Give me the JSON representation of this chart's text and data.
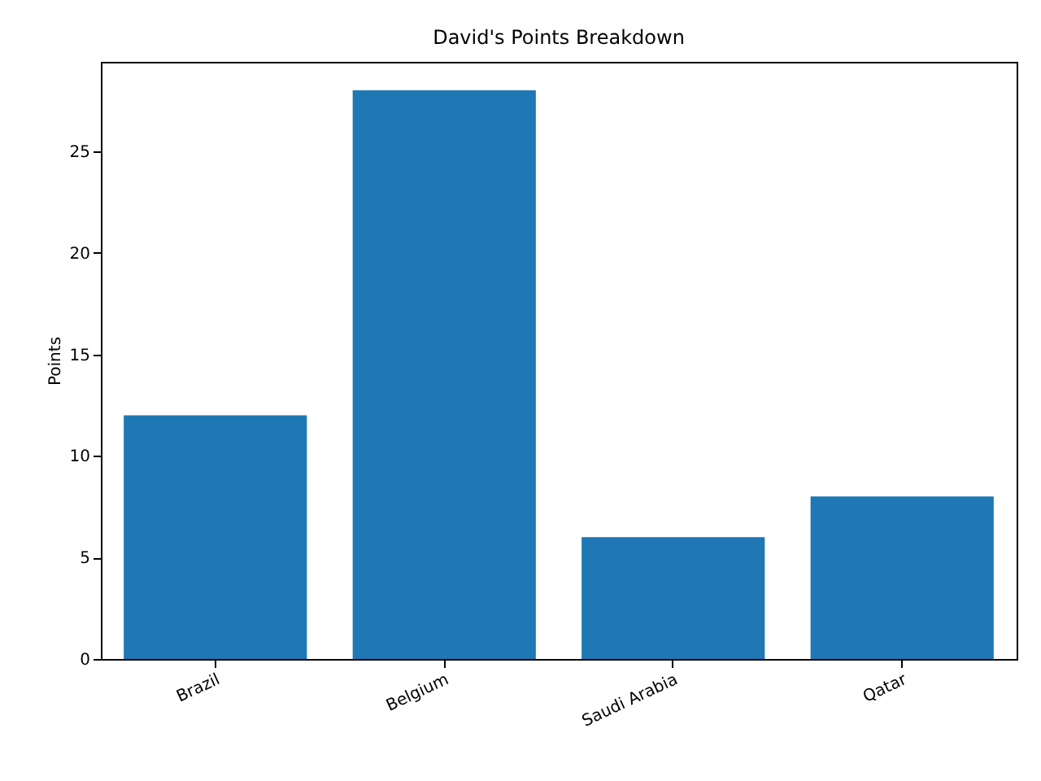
{
  "chart_data": {
    "type": "bar",
    "title": "David's Points Breakdown",
    "ylabel": "Points",
    "categories": [
      "Brazil",
      "Belgium",
      "Saudi Arabia",
      "Qatar"
    ],
    "values": [
      12,
      28,
      6,
      8
    ],
    "color": "#1f77b4",
    "ylim": [
      0,
      29.4
    ],
    "yticks": [
      0,
      5,
      10,
      15,
      20,
      25
    ],
    "grid": false
  }
}
